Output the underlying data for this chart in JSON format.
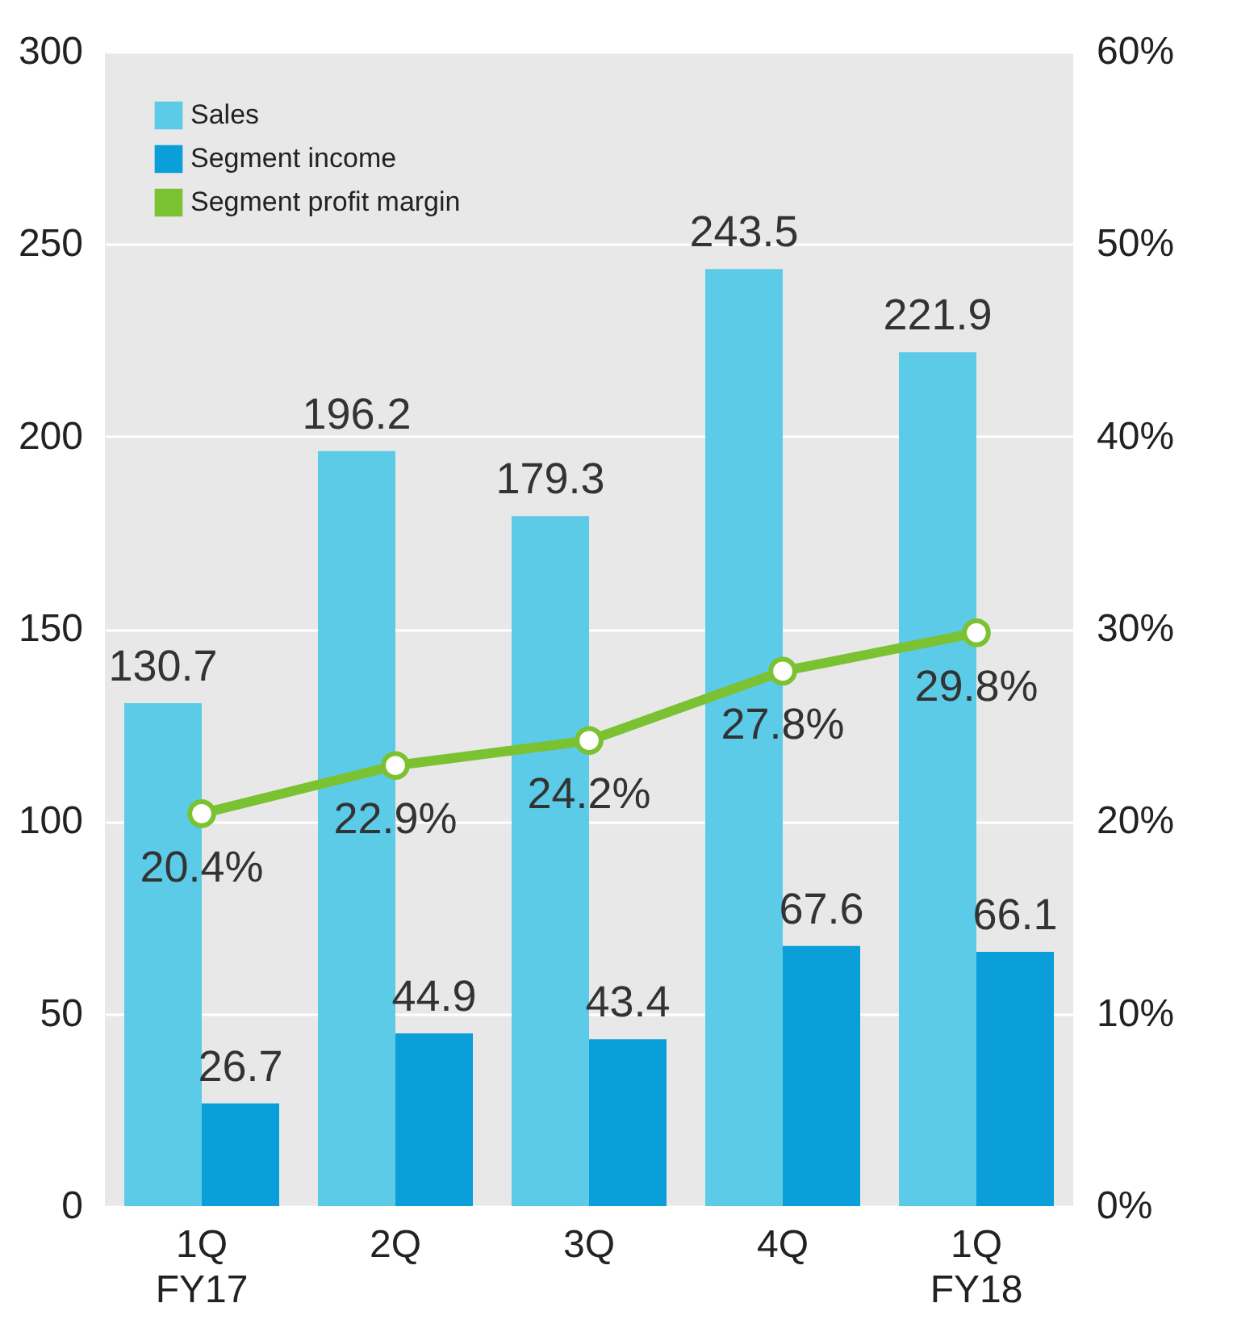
{
  "chart_data": {
    "type": "bar",
    "categories": [
      "1Q\nFY17",
      "2Q",
      "3Q",
      "4Q",
      "1Q\nFY18"
    ],
    "series": [
      {
        "name": "Sales",
        "type": "bar",
        "color": "#5ccbe8",
        "values": [
          130.7,
          196.2,
          179.3,
          243.5,
          221.9
        ]
      },
      {
        "name": "Segment income",
        "type": "bar",
        "color": "#0a9fd8",
        "values": [
          26.7,
          44.9,
          43.4,
          67.6,
          66.1
        ]
      },
      {
        "name": "Segment profit margin",
        "type": "line",
        "axis": "y2",
        "color": "#7ac231",
        "values": [
          20.4,
          22.9,
          24.2,
          27.8,
          29.8
        ],
        "value_labels": [
          "20.4%",
          "22.9%",
          "24.2%",
          "27.8%",
          "29.8%"
        ]
      }
    ],
    "ylim": [
      0,
      300
    ],
    "yticks": [
      0,
      50,
      100,
      150,
      200,
      250,
      300
    ],
    "y2lim": [
      0,
      60
    ],
    "y2ticks": [
      {
        "value": 0,
        "label": "0%"
      },
      {
        "value": 10,
        "label": "10%"
      },
      {
        "value": 20,
        "label": "20%"
      },
      {
        "value": 30,
        "label": "30%"
      },
      {
        "value": 40,
        "label": "40%"
      },
      {
        "value": 50,
        "label": "50%"
      },
      {
        "value": 60,
        "label": "60%"
      }
    ],
    "data_labels": true,
    "grid": "y",
    "legend": "top left",
    "marker": "circle"
  }
}
